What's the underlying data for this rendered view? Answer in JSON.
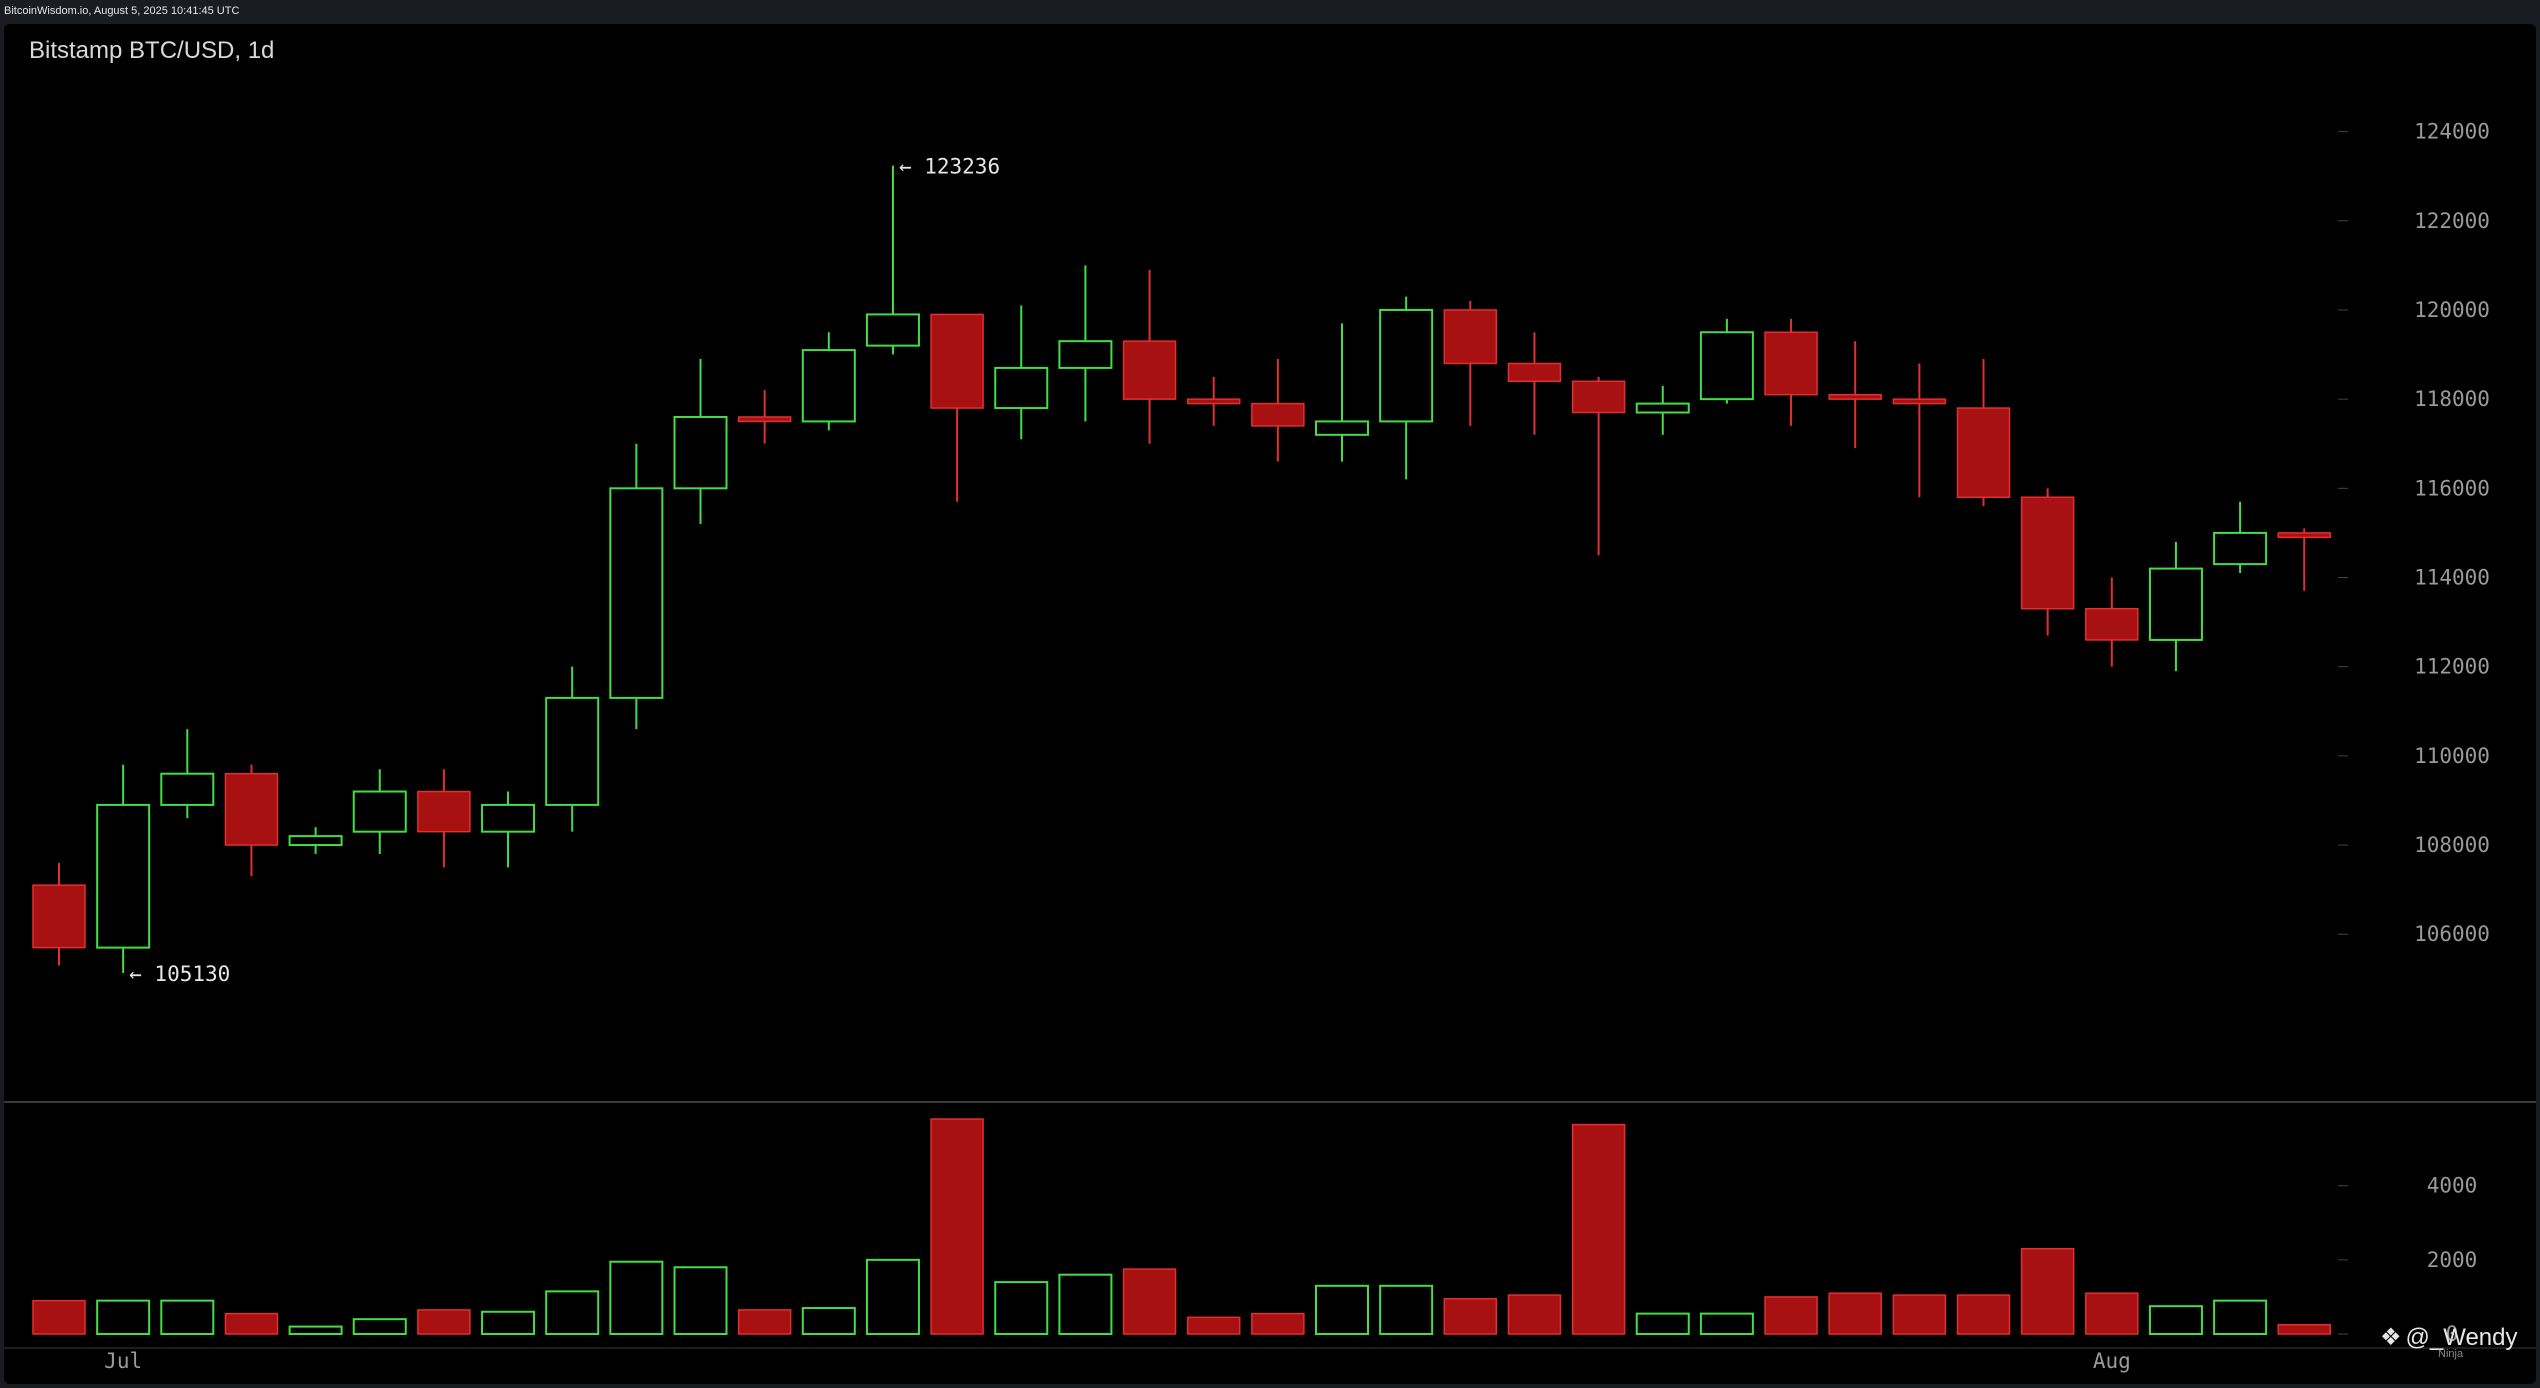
{
  "header": {
    "text": "BitcoinWisdom.io, August 5, 2025 10:41:45 UTC"
  },
  "chart_title": "Bitstamp BTC/USD, 1d",
  "watermark": {
    "icon": "diamond-logo-icon",
    "text": "@_Wendy",
    "subtext": "Ninja"
  },
  "colors": {
    "up": "#44dd44",
    "down": "#a81111",
    "down_edge": "#e03030",
    "axis_text": "#9a9a9a",
    "grid_tick": "#444444",
    "divider": "#3a3a3a",
    "background": "#000000"
  },
  "chart_data": [
    {
      "type": "candlestick",
      "title": "Bitstamp BTC/USD, 1d",
      "ylim": [
        103000,
        125000
      ],
      "yticks": [
        106000,
        108000,
        110000,
        112000,
        114000,
        116000,
        118000,
        120000,
        122000,
        124000
      ],
      "xtick_labels": [
        {
          "label": "Jul",
          "index": 1
        },
        {
          "label": "Aug",
          "index": 32
        }
      ],
      "annotations": [
        {
          "text": "← 123236",
          "index": 13,
          "value": 123236
        },
        {
          "text": "← 105130",
          "index": 1,
          "value": 105130
        }
      ],
      "candles": [
        {
          "o": 107100,
          "h": 107600,
          "l": 105300,
          "c": 105700
        },
        {
          "o": 105700,
          "h": 109800,
          "l": 105130,
          "c": 108900
        },
        {
          "o": 108900,
          "h": 110600,
          "l": 108600,
          "c": 109600
        },
        {
          "o": 109600,
          "h": 109800,
          "l": 107300,
          "c": 108000
        },
        {
          "o": 108000,
          "h": 108400,
          "l": 107800,
          "c": 108200
        },
        {
          "o": 108300,
          "h": 109700,
          "l": 107800,
          "c": 109200
        },
        {
          "o": 109200,
          "h": 109700,
          "l": 107500,
          "c": 108300
        },
        {
          "o": 108300,
          "h": 109200,
          "l": 107500,
          "c": 108900
        },
        {
          "o": 108900,
          "h": 112000,
          "l": 108300,
          "c": 111300
        },
        {
          "o": 111300,
          "h": 117000,
          "l": 110600,
          "c": 116000
        },
        {
          "o": 116000,
          "h": 118900,
          "l": 115200,
          "c": 117600
        },
        {
          "o": 117600,
          "h": 118200,
          "l": 117000,
          "c": 117500
        },
        {
          "o": 117500,
          "h": 119500,
          "l": 117300,
          "c": 119100
        },
        {
          "o": 119200,
          "h": 123236,
          "l": 119000,
          "c": 119900
        },
        {
          "o": 119900,
          "h": 119900,
          "l": 115700,
          "c": 117800
        },
        {
          "o": 117800,
          "h": 120100,
          "l": 117100,
          "c": 118700
        },
        {
          "o": 118700,
          "h": 121000,
          "l": 117500,
          "c": 119300
        },
        {
          "o": 119300,
          "h": 120900,
          "l": 117000,
          "c": 118000
        },
        {
          "o": 118000,
          "h": 118500,
          "l": 117400,
          "c": 117900
        },
        {
          "o": 117900,
          "h": 118900,
          "l": 116600,
          "c": 117400
        },
        {
          "o": 117200,
          "h": 119700,
          "l": 116600,
          "c": 117500
        },
        {
          "o": 117500,
          "h": 120300,
          "l": 116200,
          "c": 120000
        },
        {
          "o": 120000,
          "h": 120200,
          "l": 117400,
          "c": 118800
        },
        {
          "o": 118800,
          "h": 119500,
          "l": 117200,
          "c": 118400
        },
        {
          "o": 118400,
          "h": 118500,
          "l": 114500,
          "c": 117700
        },
        {
          "o": 117700,
          "h": 118300,
          "l": 117200,
          "c": 117900
        },
        {
          "o": 118000,
          "h": 119800,
          "l": 117900,
          "c": 119500
        },
        {
          "o": 119500,
          "h": 119800,
          "l": 117400,
          "c": 118100
        },
        {
          "o": 118100,
          "h": 119300,
          "l": 116900,
          "c": 118000
        },
        {
          "o": 118000,
          "h": 118800,
          "l": 115800,
          "c": 117900
        },
        {
          "o": 117800,
          "h": 118900,
          "l": 115600,
          "c": 115800
        },
        {
          "o": 115800,
          "h": 116000,
          "l": 112700,
          "c": 113300
        },
        {
          "o": 113300,
          "h": 114000,
          "l": 112000,
          "c": 112600
        },
        {
          "o": 112600,
          "h": 114800,
          "l": 111900,
          "c": 114200
        },
        {
          "o": 114300,
          "h": 115700,
          "l": 114100,
          "c": 115000
        },
        {
          "o": 115000,
          "h": 115100,
          "l": 113700,
          "c": 114900
        }
      ]
    },
    {
      "type": "bar",
      "title": "",
      "ylim": [
        0,
        5800
      ],
      "yticks": [
        0,
        2000,
        4000
      ],
      "values": [
        900,
        900,
        900,
        550,
        200,
        400,
        650,
        600,
        1150,
        1950,
        1800,
        650,
        700,
        2000,
        5800,
        1400,
        1600,
        1750,
        450,
        550,
        1300,
        1300,
        950,
        1050,
        5650,
        550,
        550,
        1000,
        1100,
        1050,
        1050,
        2300,
        1100,
        750,
        900,
        250
      ],
      "directions": [
        "down",
        "up",
        "up",
        "down",
        "up",
        "up",
        "down",
        "up",
        "up",
        "up",
        "up",
        "down",
        "up",
        "up",
        "down",
        "up",
        "up",
        "down",
        "down",
        "down",
        "up",
        "up",
        "down",
        "down",
        "down",
        "up",
        "up",
        "down",
        "down",
        "down",
        "down",
        "down",
        "down",
        "up",
        "up",
        "down"
      ]
    }
  ]
}
